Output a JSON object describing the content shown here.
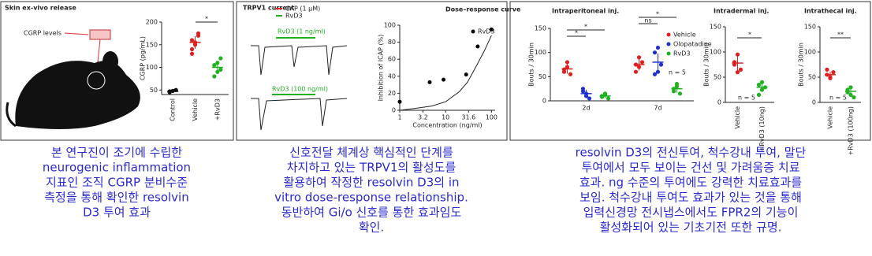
{
  "panels": [
    {
      "title": "Skin ex-vivo release",
      "label": "CGRP levels"
    },
    {
      "title": "TRPV1 current",
      "legend": [
        "CAP (1 μM)",
        "RvD3"
      ],
      "trace_labels": [
        "RvD3 (1 ng/ml)",
        "RvD3 (100 ng/ml)"
      ]
    }
  ],
  "chart_data": [
    {
      "type": "dotplot",
      "ylabel": "CGRP (pg/mL)",
      "categories": [
        "Control",
        "Vehicle",
        "+RvD3"
      ],
      "ylim": [
        40,
        200
      ],
      "yticks": [
        50,
        100,
        150,
        200
      ],
      "series": [
        {
          "color": "#111111",
          "values": [
            [
              45,
              48,
              50,
              47
            ],
            null,
            null
          ],
          "means": [
            47,
            null,
            null
          ],
          "sem": [
            2,
            null,
            null
          ]
        },
        {
          "color": "#e02020",
          "values": [
            null,
            [
              160,
              150,
              170,
              140,
              155,
              175,
              130
            ],
            null
          ],
          "means": [
            null,
            155,
            null
          ],
          "sem": [
            null,
            14,
            null
          ]
        },
        {
          "color": "#20b020",
          "values": [
            null,
            null,
            [
              105,
              90,
              120,
              80,
              110,
              95
            ]
          ],
          "means": [
            null,
            null,
            100
          ],
          "sem": [
            null,
            null,
            12
          ]
        }
      ],
      "annotations": [
        "*"
      ]
    },
    {
      "type": "scatter",
      "title": "Dose–response curve",
      "xlabel": "Concentration (ng/ml)",
      "ylabel": "Inhibition of ICAP (%)",
      "log_x": true,
      "xlim": [
        1,
        120
      ],
      "xticks": [
        1,
        3.2,
        10,
        31.6,
        100
      ],
      "ylim": [
        0,
        100
      ],
      "yticks": [
        0,
        20,
        40,
        60,
        80,
        100
      ],
      "legend": "top-right",
      "series": [
        {
          "name": "RvD3",
          "color": "#000000",
          "x": [
            1,
            4.5,
            9,
            28,
            50,
            100
          ],
          "values": [
            10,
            33,
            36,
            42,
            75,
            95
          ]
        }
      ],
      "curve": {
        "x": [
          1,
          2,
          5,
          10,
          20,
          30,
          50,
          70,
          100
        ],
        "values": [
          0,
          2,
          5,
          10,
          22,
          33,
          55,
          70,
          88
        ]
      }
    },
    {
      "type": "dotplot",
      "title": "Intraperitoneal inj.",
      "ylabel": "Bouts / 30min",
      "categories": [
        "2d",
        "7d"
      ],
      "ylim": [
        0,
        150
      ],
      "yticks": [
        0,
        50,
        100,
        150
      ],
      "legend": "top-right",
      "note": "n = 5",
      "series": [
        {
          "name": "Vehicle",
          "color": "#e02020",
          "values": [
            [
              60,
              70,
              55,
              65,
              80
            ],
            [
              75,
              90,
              80,
              60,
              70
            ]
          ],
          "means": [
            66,
            75
          ],
          "sem": [
            10,
            12
          ]
        },
        {
          "name": "Olopatadine",
          "color": "#2030d0",
          "values": [
            [
              20,
              15,
              5,
              25,
              10
            ],
            [
              100,
              110,
              75,
              55,
              60
            ]
          ],
          "means": [
            15,
            80
          ],
          "sem": [
            8,
            18
          ]
        },
        {
          "name": "RvD3",
          "color": "#20b020",
          "values": [
            [
              10,
              15,
              5,
              8,
              12
            ],
            [
              25,
              35,
              15,
              20,
              30
            ]
          ],
          "means": [
            10,
            25
          ],
          "sem": [
            4,
            8
          ]
        }
      ],
      "annotations": [
        "*",
        "*",
        "ns",
        "*"
      ]
    },
    {
      "type": "dotplot",
      "title": "Intradermal inj.",
      "ylabel": "Bouts / 30min",
      "categories": [
        "Vehicle",
        "+RvD3 (10ng)"
      ],
      "ylim": [
        0,
        150
      ],
      "yticks": [
        0,
        50,
        100,
        150
      ],
      "note": "n = 5",
      "series": [
        {
          "color": "#e02020",
          "values": [
            [
              80,
              95,
              65,
              75,
              60
            ],
            null
          ],
          "means": [
            78,
            null
          ],
          "sem": [
            15,
            null
          ]
        },
        {
          "color": "#20b020",
          "values": [
            null,
            [
              35,
              25,
              30,
              15,
              40
            ]
          ],
          "means": [
            null,
            30
          ],
          "sem": [
            null,
            8
          ]
        }
      ],
      "annotations": [
        "*"
      ]
    },
    {
      "type": "dotplot",
      "title": "Intrathecal inj.",
      "ylabel": "Bouts / 30min",
      "categories": [
        "Vehicle",
        "+RvD3 (100ng)"
      ],
      "ylim": [
        0,
        150
      ],
      "yticks": [
        0,
        50,
        100,
        150
      ],
      "note": "n = 5",
      "series": [
        {
          "color": "#e02020",
          "values": [
            [
              55,
              50,
              60,
              65,
              48
            ],
            null
          ],
          "means": [
            55,
            null
          ],
          "sem": [
            6,
            null
          ]
        },
        {
          "color": "#20b020",
          "values": [
            null,
            [
              20,
              30,
              10,
              25,
              15
            ]
          ],
          "means": [
            null,
            22
          ],
          "sem": [
            null,
            7
          ]
        }
      ],
      "annotations": [
        "**"
      ]
    }
  ],
  "captions": [
    [
      "본 연구진이 조기에 수립한",
      "neurogenic inflammation",
      "지표인 조직 CGRP 분비수준",
      "측정을 통해 확인한 resolvin",
      "D3 투여 효과"
    ],
    [
      "신호전달 체계상 핵심적인 단계를",
      "차지하고 있는 TRPV1의 활성도를",
      "활용하여 작정한 resolvin D3의 in",
      "vitro dose-response relationship.",
      "동반하여 Gi/o 신호를 통한 효과임도",
      "확인."
    ],
    [
      "resolvin D3의 전신투여, 척수강내 투여, 말단",
      "투여에서 모두 보이는 건선 및 가려움증 치료",
      "효과. ng 수준의 투여에도 강력한 치료효과를",
      "보임. 척수강내 투여도 효과가 있는 것을 통해",
      "입력신경망 전시냅스에서도 FPR2의 기능이",
      "활성화되어 있는 기초기전 또한 규명."
    ]
  ]
}
